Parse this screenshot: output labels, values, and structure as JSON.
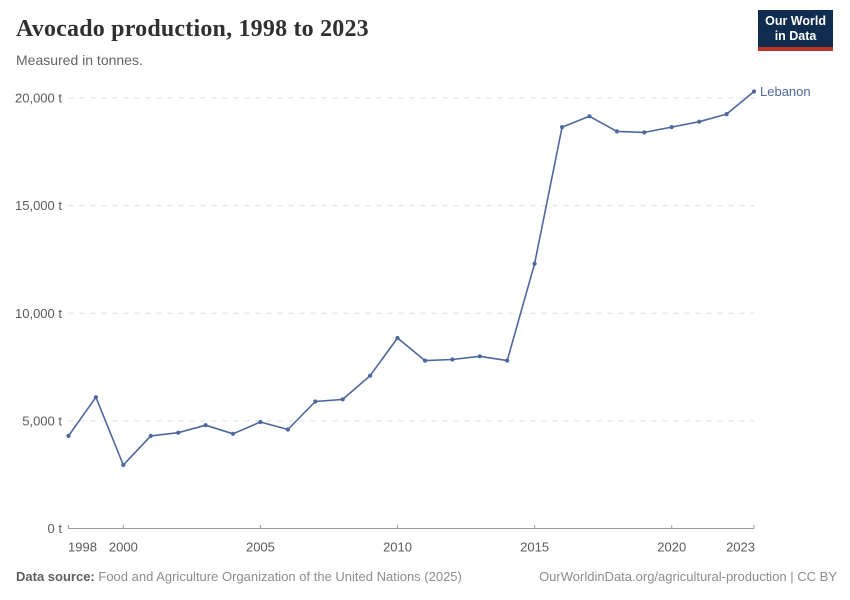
{
  "header": {
    "title": "Avocado production, 1998 to 2023",
    "subtitle": "Measured in tonnes.",
    "logo": {
      "line1": "Our World",
      "line2": "in Data"
    }
  },
  "chart_data": {
    "type": "line",
    "title": "Avocado production, 1998 to 2023",
    "unit": "tonnes",
    "x": [
      1998,
      1999,
      2000,
      2001,
      2002,
      2003,
      2004,
      2005,
      2006,
      2007,
      2008,
      2009,
      2010,
      2011,
      2012,
      2013,
      2014,
      2015,
      2016,
      2017,
      2018,
      2019,
      2020,
      2021,
      2022,
      2023
    ],
    "series": [
      {
        "name": "Lebanon",
        "color": "#4d689e",
        "values": [
          4300,
          6100,
          2950,
          4300,
          4450,
          4800,
          4400,
          4950,
          4600,
          5900,
          6000,
          7100,
          8850,
          7800,
          7850,
          8000,
          7800,
          12300,
          18650,
          19150,
          18450,
          18400,
          18650,
          18900,
          19250,
          20300
        ]
      }
    ],
    "xlim": [
      1998,
      2023
    ],
    "ylim": [
      0,
      20000
    ],
    "xticks": [
      1998,
      2000,
      2005,
      2010,
      2015,
      2020,
      2023
    ],
    "yticks": [
      0,
      5000,
      10000,
      15000,
      20000
    ],
    "ytick_labels": [
      "0 t",
      "5,000 t",
      "10,000 t",
      "15,000 t",
      "20,000 t"
    ],
    "grid": "horizontal-dashed",
    "legend_position": "end-of-line-label"
  },
  "colors": {
    "line": "#4d689e",
    "grid": "#dedede",
    "axis": "#9a9a9a",
    "tick_text": "#5b5b5b"
  },
  "footer": {
    "source_label": "Data source:",
    "source_text": "Food and Agriculture Organization of the United Nations (2025)",
    "link_text": "OurWorldinData.org/agricultural-production | CC BY"
  }
}
